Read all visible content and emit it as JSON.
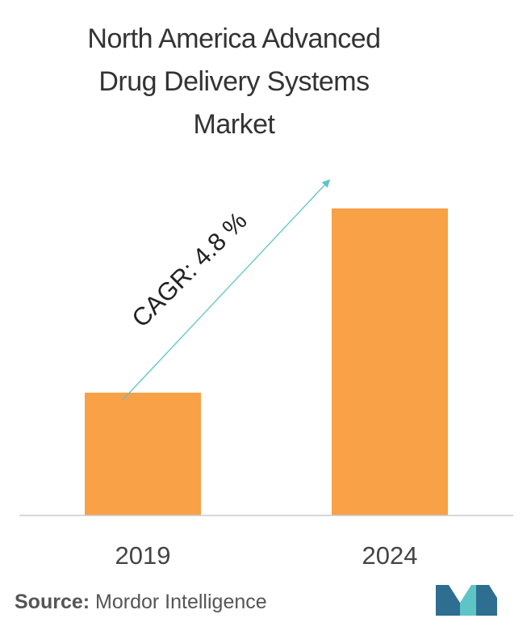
{
  "chart_data": {
    "type": "bar",
    "title_lines": [
      "North America Advanced",
      "Drug Delivery Systems",
      "Market"
    ],
    "categories": [
      "2019",
      "2024"
    ],
    "values": [
      1.0,
      2.5
    ],
    "ylim": [
      0,
      3.0
    ],
    "xlabel": "",
    "ylabel": "",
    "grid": false,
    "legend": "none",
    "annotation": "CAGR: 4.8 %",
    "colors": {
      "bar": "#F9A146",
      "arrow": "#5FC4C6",
      "axis": "#CCCCCC",
      "tick_label": "#444444"
    }
  },
  "source": {
    "label": "Source:",
    "text": " Mordor Intelligence"
  },
  "logo": {
    "name": "mordor-intelligence-logo",
    "colors": [
      "#2E6E91",
      "#5FC4C6"
    ]
  }
}
